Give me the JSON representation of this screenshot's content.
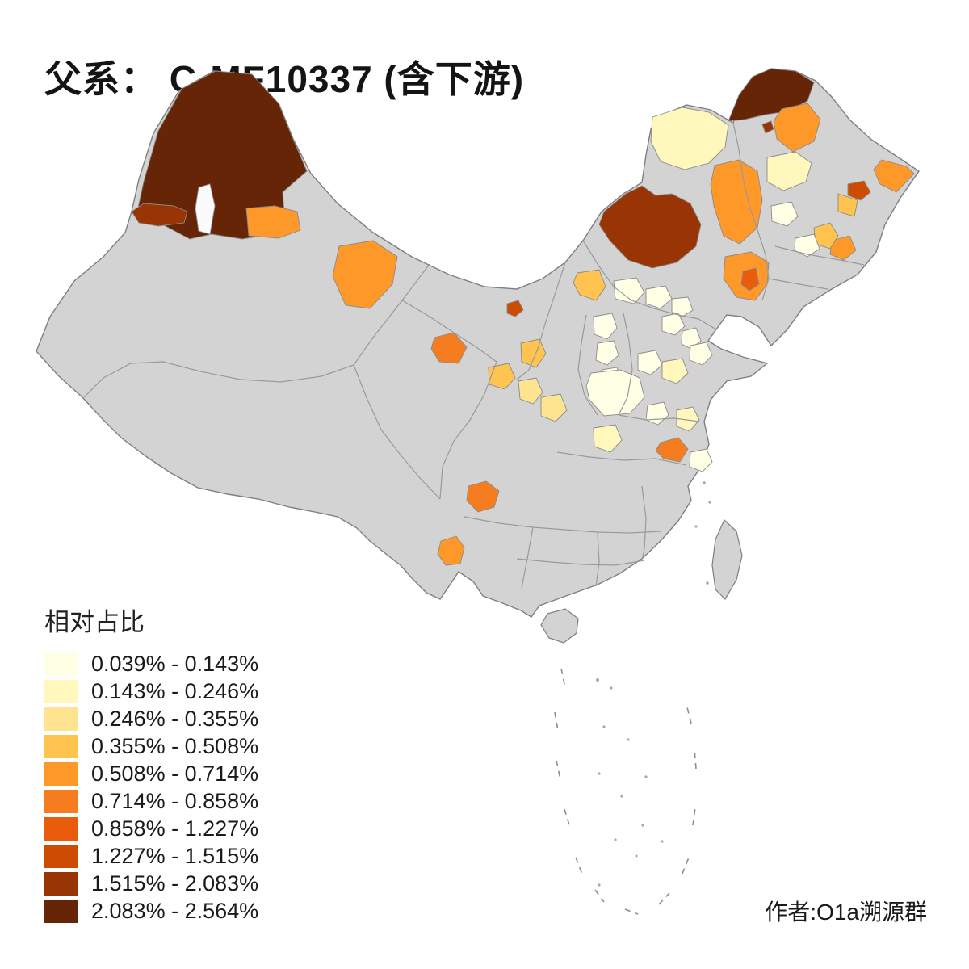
{
  "title": "父系： C-MF10337 (含下游)",
  "attribution": "作者:O1a溯源群",
  "legend": {
    "title": "相对占比",
    "items": [
      {
        "label": "0.039% - 0.143%",
        "color": "#FFFFE5"
      },
      {
        "label": "0.143% - 0.246%",
        "color": "#FFF7BC"
      },
      {
        "label": "0.246% - 0.355%",
        "color": "#FEE391"
      },
      {
        "label": "0.355% - 0.508%",
        "color": "#FEC44F"
      },
      {
        "label": "0.508% - 0.714%",
        "color": "#FE9929"
      },
      {
        "label": "0.714% - 0.858%",
        "color": "#F57D20"
      },
      {
        "label": "0.858% - 1.227%",
        "color": "#E85C0C"
      },
      {
        "label": "1.227% - 1.515%",
        "color": "#CC4C02"
      },
      {
        "label": "1.515% - 2.083%",
        "color": "#993404"
      },
      {
        "label": "2.083% - 2.564%",
        "color": "#662506"
      }
    ]
  },
  "map": {
    "base_fill": "#D3D3D3",
    "coast_stroke": "#7F7F7F",
    "province_stroke": "#9A9A9A",
    "regions": {
      "north-xinjiang": 10,
      "mohe-heihe": 10,
      "west-inner-mongolia": 9,
      "tacheng-border": 9,
      "heihe-city-dot": 9,
      "jiayuguan": 8,
      "hegang": 8,
      "central-liaoning-city": 7,
      "hexi-corridor": 6,
      "central-hubei": 6,
      "south-sichuan": 6,
      "east-altay": 5,
      "hami": 5,
      "qiqihar": 5,
      "heihe-east": 5,
      "sanjiang": 5,
      "central-liaoning": 5,
      "northeast-yunnan": 5,
      "yanbian": 5,
      "central-jilin": 4,
      "changchun": 4,
      "zhangjiakou": 4,
      "north-shaanxi": 4,
      "lanzhou": 4,
      "pingliang": 3,
      "guanzhong": 3,
      "hulunbuir": 2,
      "suihua": 2,
      "central-hebei": 2,
      "central-shandong": 2,
      "nanyang": 2,
      "north-hebei-a": 1,
      "north-hebei-b": 1,
      "north-hebei-c": 1,
      "beijing": 1,
      "tianjin": 1,
      "north-shanxi": 1,
      "central-shanxi": 1,
      "south-shanxi": 1,
      "jinan": 1,
      "central-shaanxi": 1,
      "east-henan": 1,
      "hefei": 1,
      "handan": 1,
      "harbin-plain": 1,
      "jilin-plain": 1
    }
  }
}
